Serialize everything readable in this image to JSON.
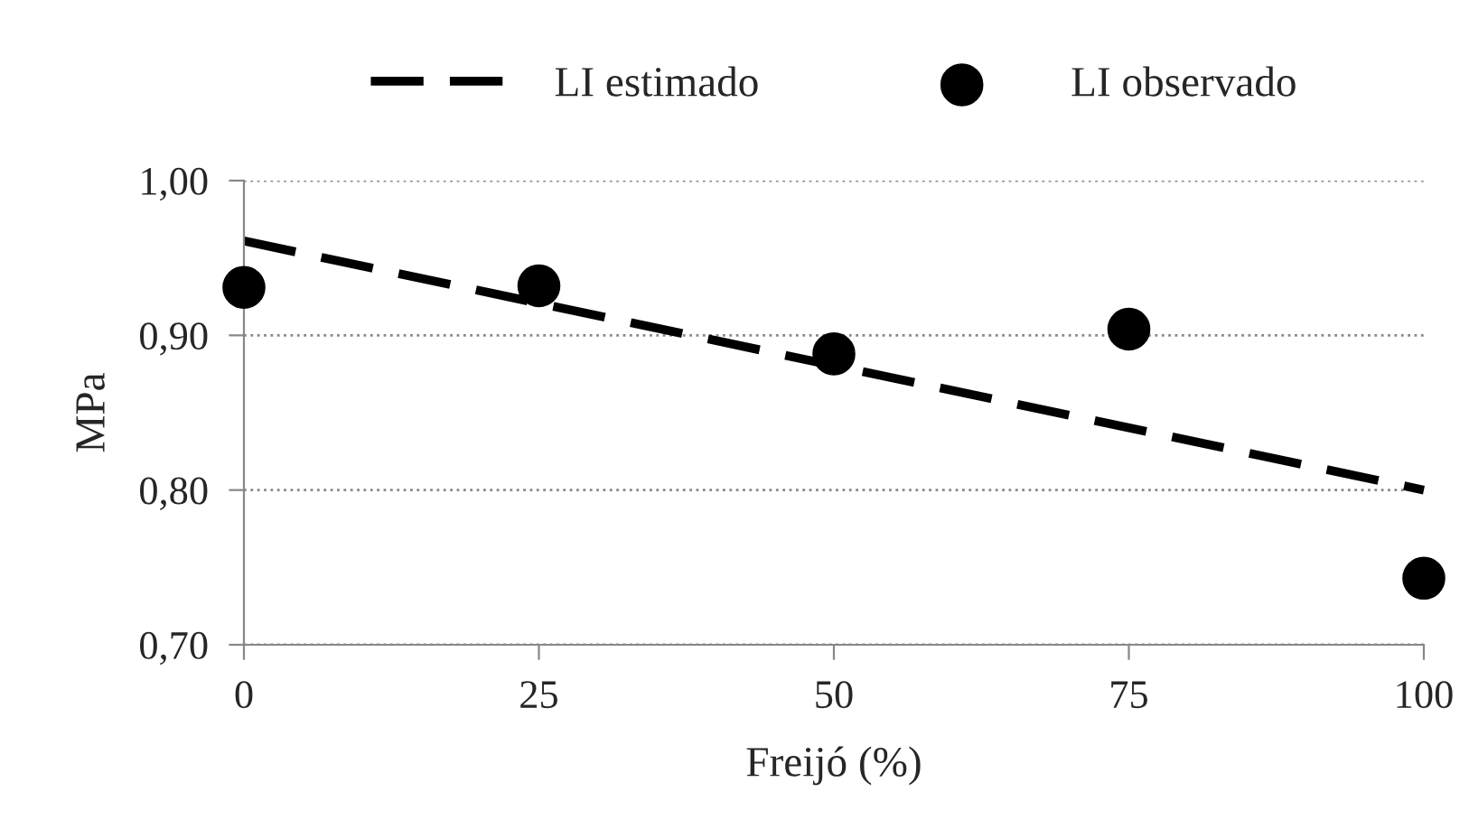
{
  "chart_data": {
    "type": "scatter",
    "xlabel": "Freijó (%)",
    "ylabel": "MPa",
    "series": [
      {
        "name": "LI estimado",
        "type": "line",
        "color": "#000000",
        "line_style": "dashed",
        "marker": "none",
        "x": [
          0,
          100
        ],
        "values": [
          0.961,
          0.8
        ]
      },
      {
        "name": "LI observado",
        "color": "#000000",
        "marker": "circle",
        "x": [
          0,
          25,
          50,
          75,
          100
        ],
        "values": [
          0.931,
          0.932,
          0.888,
          0.904,
          0.743
        ]
      }
    ],
    "xlim": [
      0,
      100
    ],
    "xticks": [
      0,
      25,
      50,
      75,
      100
    ],
    "ylim": [
      0.7,
      1.0
    ],
    "yticks": [
      {
        "value": 0.7,
        "label": "0,70"
      },
      {
        "value": 0.8,
        "label": "0,80"
      },
      {
        "value": 0.9,
        "label": "0,90"
      },
      {
        "value": 1.0,
        "label": "1,00"
      }
    ],
    "grid": "y",
    "legend": "top"
  }
}
